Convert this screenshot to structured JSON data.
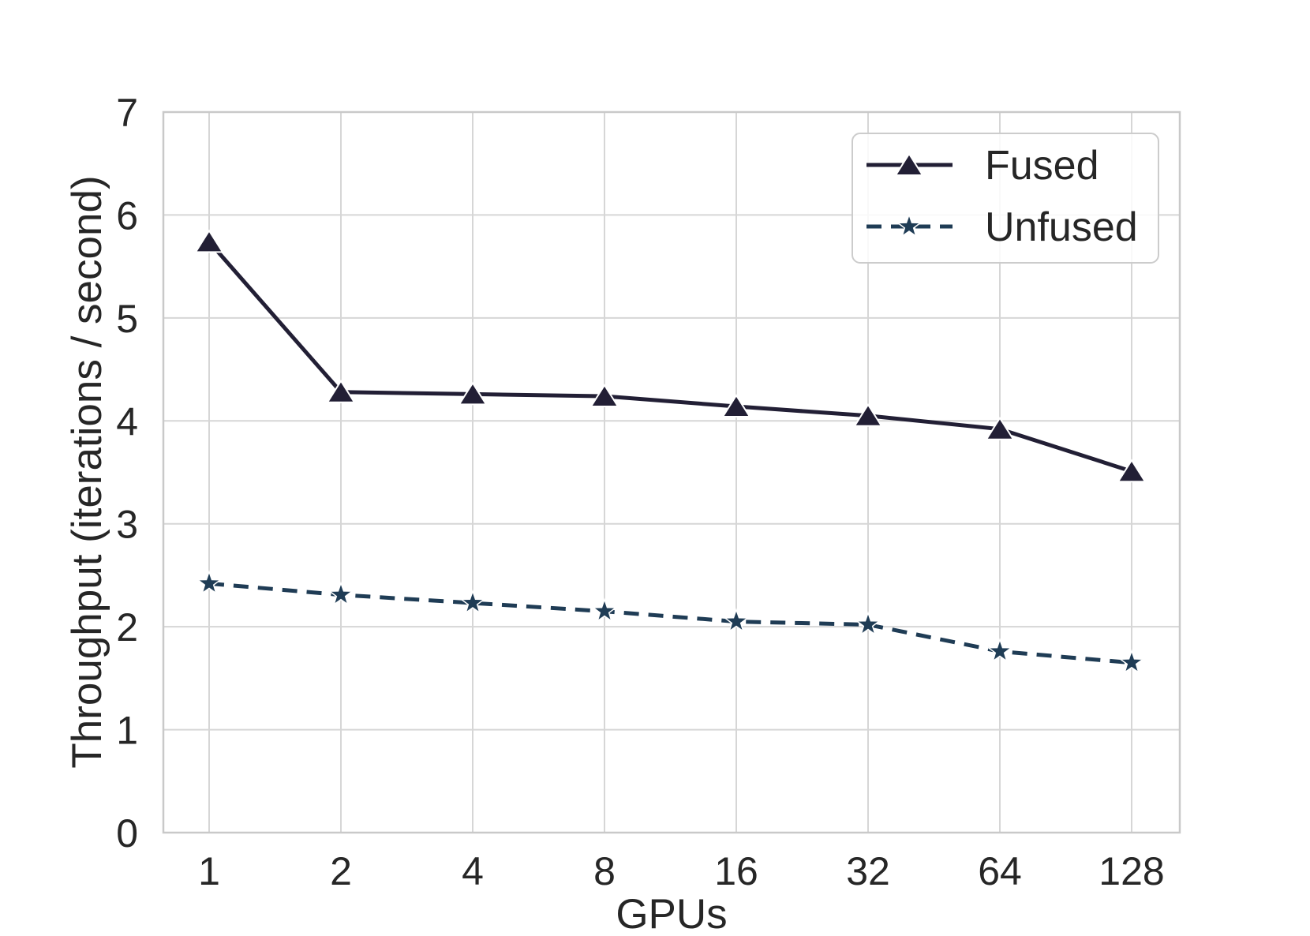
{
  "figure": {
    "background": "#ffffff",
    "text_color": "#262626",
    "grid_color": "#d6d6d6",
    "spine_color": "#c9c9c9",
    "legend_border_color": "#cccccc"
  },
  "chart_data": {
    "type": "line",
    "title": "",
    "xlabel": "GPUs",
    "ylabel": "Throughput (iterations / second)",
    "x_scale": "log2-categorical",
    "categories": [
      "1",
      "2",
      "4",
      "8",
      "16",
      "32",
      "64",
      "128"
    ],
    "yticks": [
      0,
      1,
      2,
      3,
      4,
      5,
      6,
      7
    ],
    "ylim": [
      0,
      7
    ],
    "grid": true,
    "legend_position": "upper right",
    "series": [
      {
        "name": "Fused",
        "color": "#221f35",
        "line_style": "solid",
        "marker": "triangle",
        "values": [
          5.74,
          4.28,
          4.26,
          4.24,
          4.14,
          4.05,
          3.92,
          3.51
        ]
      },
      {
        "name": "Unfused",
        "color": "#1f3c55",
        "line_style": "dashed",
        "marker": "star",
        "values": [
          2.42,
          2.31,
          2.23,
          2.15,
          2.05,
          2.02,
          1.76,
          1.65
        ]
      }
    ]
  }
}
